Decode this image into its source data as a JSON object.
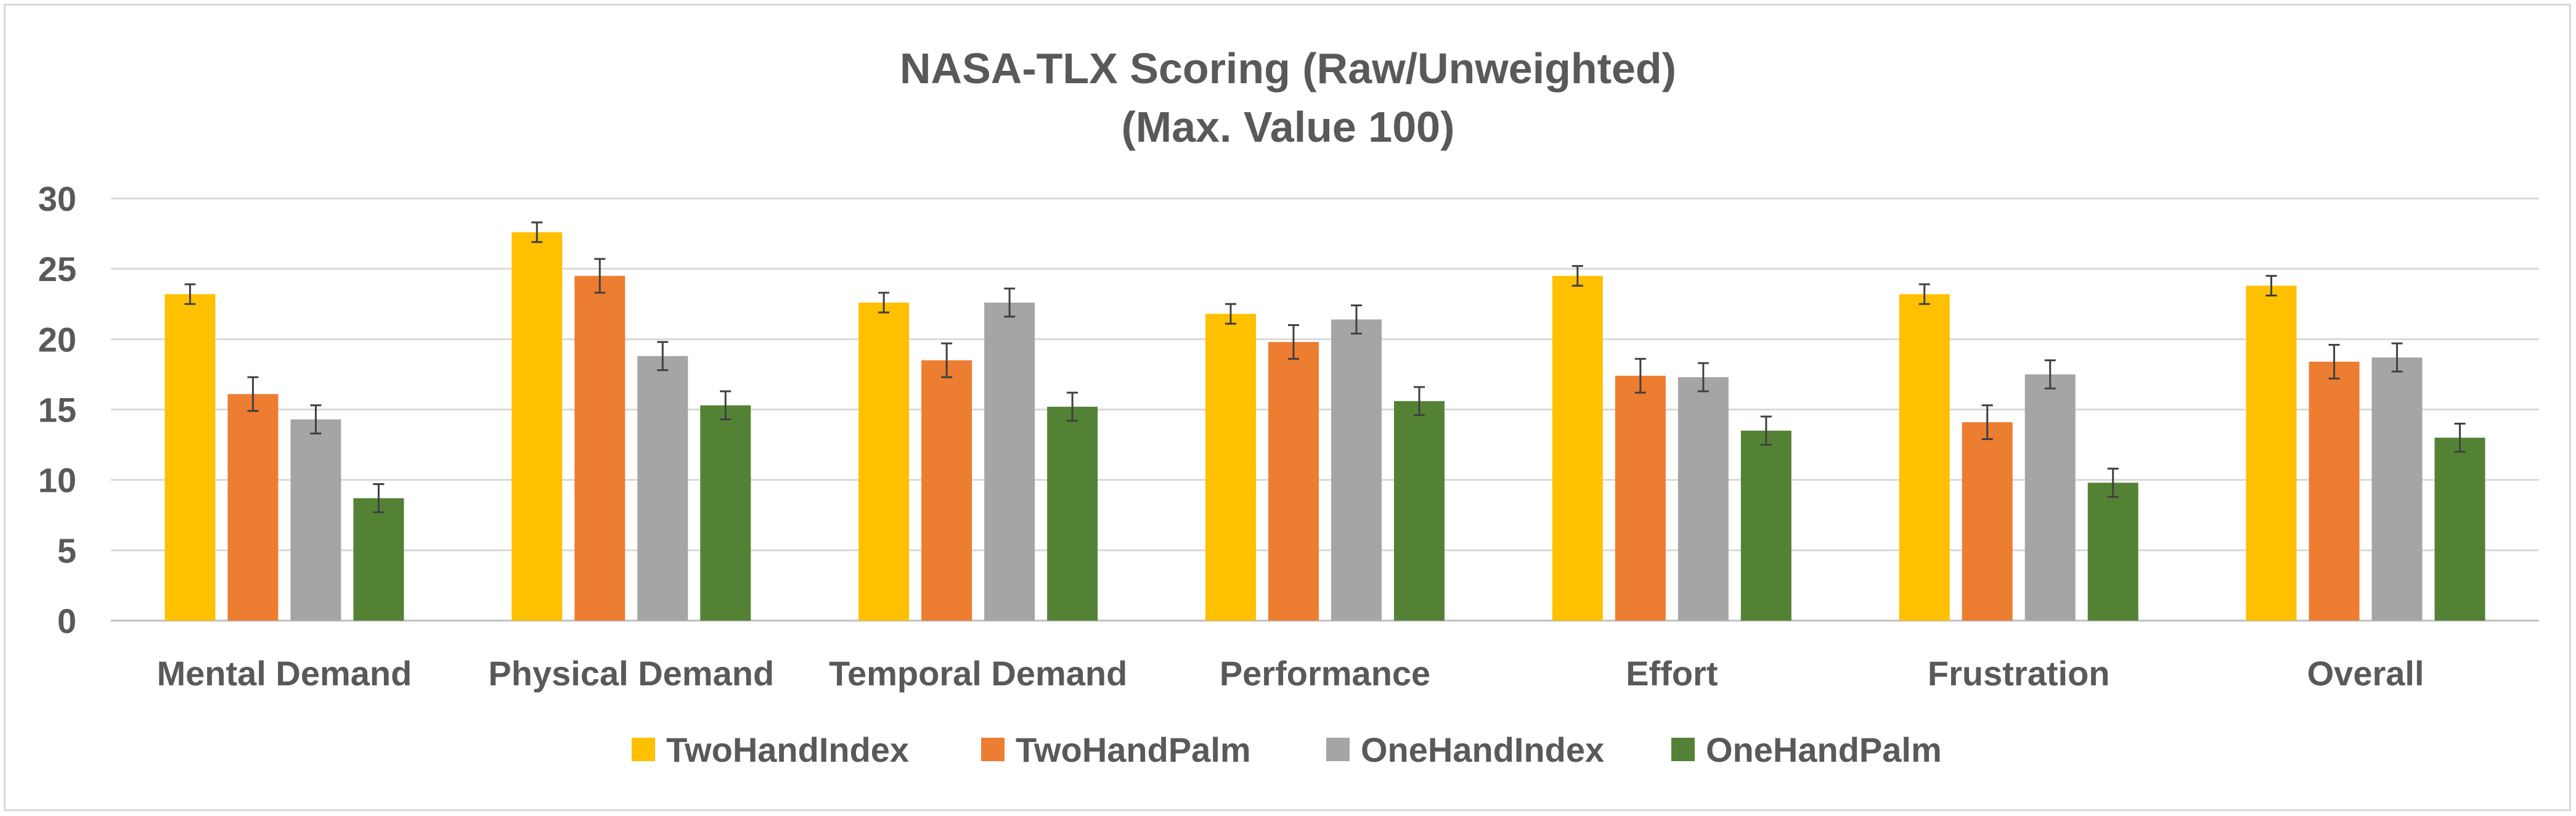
{
  "chart_data": {
    "type": "bar",
    "title": [
      "NASA-TLX Scoring (Raw/Unweighted)",
      "(Max. Value 100)"
    ],
    "xlabel": "",
    "ylabel": "",
    "ylim": [
      0,
      30
    ],
    "yticks": [
      0,
      5,
      10,
      15,
      20,
      25,
      30
    ],
    "grid": true,
    "legend_position": "bottom",
    "categories": [
      "Mental Demand",
      "Physical Demand",
      "Temporal Demand",
      "Performance",
      "Effort",
      "Frustration",
      "Overall"
    ],
    "series": [
      {
        "name": "TwoHandIndex",
        "color": "#ffc000",
        "values": [
          23.2,
          27.6,
          22.6,
          21.8,
          24.5,
          23.2,
          23.8
        ],
        "errors": [
          0.7,
          0.7,
          0.7,
          0.7,
          0.7,
          0.7,
          0.7
        ]
      },
      {
        "name": "TwoHandPalm",
        "color": "#ed7d31",
        "values": [
          16.1,
          24.5,
          18.5,
          19.8,
          17.4,
          14.1,
          18.4
        ],
        "errors": [
          1.2,
          1.2,
          1.2,
          1.2,
          1.2,
          1.2,
          1.2
        ]
      },
      {
        "name": "OneHandIndex",
        "color": "#a5a5a5",
        "values": [
          14.3,
          18.8,
          22.6,
          21.4,
          17.3,
          17.5,
          18.7
        ],
        "errors": [
          1.0,
          1.0,
          1.0,
          1.0,
          1.0,
          1.0,
          1.0
        ]
      },
      {
        "name": "OneHandPalm",
        "color": "#548235",
        "values": [
          8.7,
          15.3,
          15.2,
          15.6,
          13.5,
          9.8,
          13.0
        ],
        "errors": [
          1.0,
          1.0,
          1.0,
          1.0,
          1.0,
          1.0,
          1.0
        ]
      }
    ]
  }
}
